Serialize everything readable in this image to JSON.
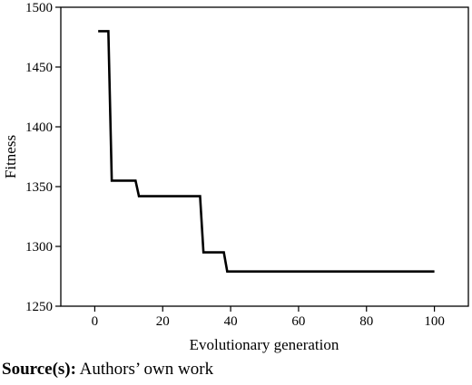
{
  "chart_data": {
    "type": "line",
    "x_label": "Evolutionary generation",
    "y_label": "Fitness",
    "x": [
      1,
      4,
      5,
      12,
      13,
      31,
      32,
      38,
      39,
      100
    ],
    "series": [
      {
        "color": "#000000",
        "values": [
          1480,
          1480,
          1355,
          1355,
          1342,
          1342,
          1295,
          1295,
          1279,
          1279
        ]
      }
    ],
    "xlim": [
      -10,
      110
    ],
    "xticks": [
      0,
      20,
      40,
      60,
      80,
      100
    ],
    "ylim": [
      1250,
      1500
    ],
    "yticks": [
      1250,
      1300,
      1350,
      1400,
      1450,
      1500
    ]
  },
  "source": {
    "label": "Source(s):",
    "text": "Authors’ own work"
  }
}
